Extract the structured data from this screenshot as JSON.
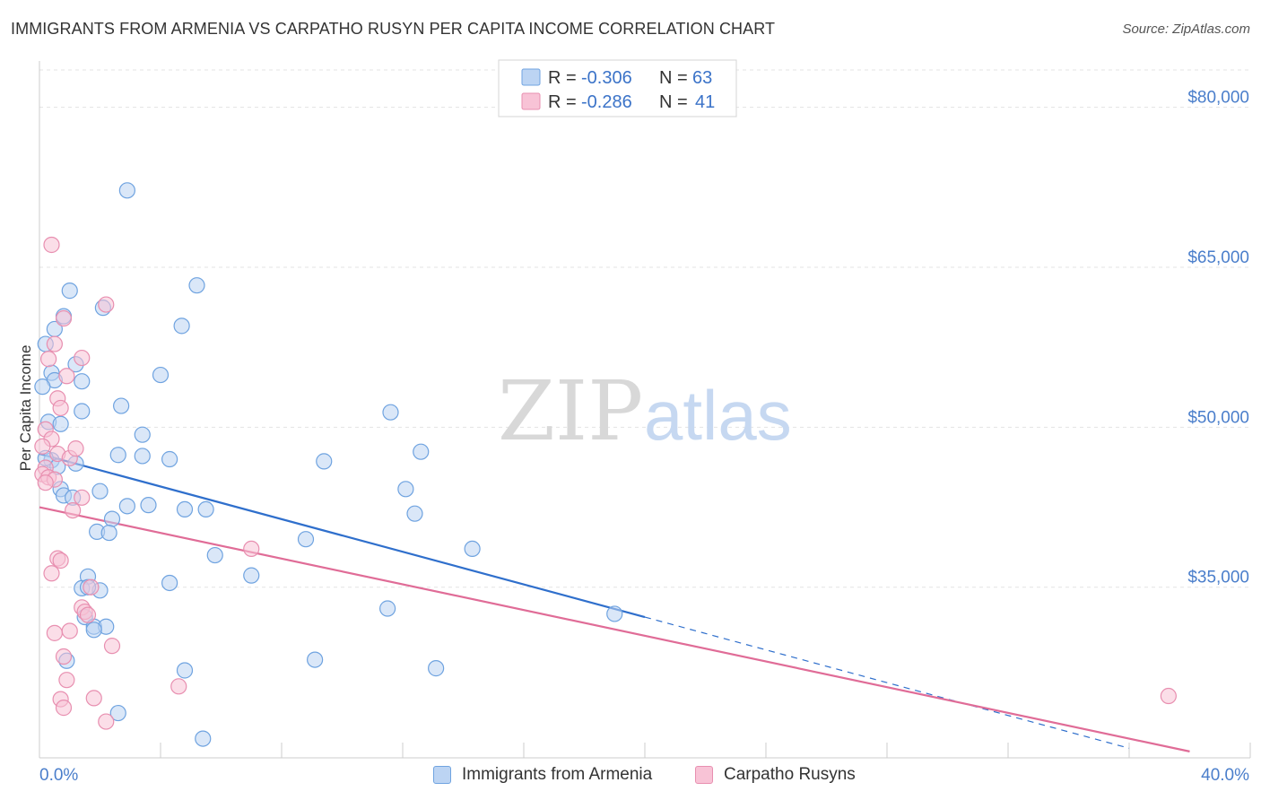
{
  "title": "IMMIGRANTS FROM ARMENIA VS CARPATHO RUSYN PER CAPITA INCOME CORRELATION CHART",
  "source": "Source: ZipAtlas.com",
  "watermark": {
    "zip": "ZIP",
    "atlas": "atlas"
  },
  "colors": {
    "blue": "#6fa3e0",
    "blue_fill": "#bcd4f3",
    "blue_line": "#2f6fcc",
    "pink": "#e88fb0",
    "pink_fill": "#f8c3d6",
    "pink_line": "#e06c97",
    "axis_label": "#4a7ecb"
  },
  "legend_top": [
    {
      "r_label": "R =",
      "r_value": "-0.306",
      "n_label": "N =",
      "n_value": "63"
    },
    {
      "r_label": "R =",
      "r_value": "-0.286",
      "n_label": "N =",
      "n_value": "41"
    }
  ],
  "chart_data": {
    "type": "scatter",
    "title": "IMMIGRANTS FROM ARMENIA VS CARPATHO RUSYN PER CAPITA INCOME CORRELATION CHART",
    "xlabel": "",
    "ylabel": "Per Capita Income",
    "xlim": [
      0,
      40
    ],
    "ylim": [
      19000,
      84000
    ],
    "x_tick_labels": [
      "0.0%",
      "40.0%"
    ],
    "y_ticks": [
      35000,
      50000,
      65000,
      80000
    ],
    "y_tick_labels": [
      "$35,000",
      "$50,000",
      "$65,000",
      "$80,000"
    ],
    "grid": true,
    "legend_position": "top-center",
    "series": [
      {
        "name": "Immigrants from Armenia",
        "color": "blue",
        "trend": {
          "x": [
            0,
            20
          ],
          "y": [
            47500,
            32200
          ],
          "dashed_to": {
            "x": [
              20,
              36
            ],
            "y": [
              32200,
              19900
            ]
          }
        },
        "points": [
          {
            "x": 2.9,
            "y": 72200
          },
          {
            "x": 5.2,
            "y": 63300
          },
          {
            "x": 1.0,
            "y": 62800
          },
          {
            "x": 2.1,
            "y": 61200
          },
          {
            "x": 0.8,
            "y": 60400
          },
          {
            "x": 4.7,
            "y": 59500
          },
          {
            "x": 0.5,
            "y": 59200
          },
          {
            "x": 0.2,
            "y": 57800
          },
          {
            "x": 1.2,
            "y": 55900
          },
          {
            "x": 0.4,
            "y": 55100
          },
          {
            "x": 4.0,
            "y": 54900
          },
          {
            "x": 0.5,
            "y": 54400
          },
          {
            "x": 1.4,
            "y": 54300
          },
          {
            "x": 0.1,
            "y": 53800
          },
          {
            "x": 2.7,
            "y": 52000
          },
          {
            "x": 1.4,
            "y": 51500
          },
          {
            "x": 11.6,
            "y": 51400
          },
          {
            "x": 0.3,
            "y": 50500
          },
          {
            "x": 0.7,
            "y": 50300
          },
          {
            "x": 3.4,
            "y": 49300
          },
          {
            "x": 12.6,
            "y": 47700
          },
          {
            "x": 2.6,
            "y": 47400
          },
          {
            "x": 3.4,
            "y": 47300
          },
          {
            "x": 4.3,
            "y": 47000
          },
          {
            "x": 9.4,
            "y": 46800
          },
          {
            "x": 0.4,
            "y": 46900
          },
          {
            "x": 0.2,
            "y": 47100
          },
          {
            "x": 1.2,
            "y": 46600
          },
          {
            "x": 0.6,
            "y": 46300
          },
          {
            "x": 12.1,
            "y": 44200
          },
          {
            "x": 0.7,
            "y": 44200
          },
          {
            "x": 2.0,
            "y": 44000
          },
          {
            "x": 0.8,
            "y": 43600
          },
          {
            "x": 1.1,
            "y": 43400
          },
          {
            "x": 3.6,
            "y": 42700
          },
          {
            "x": 2.9,
            "y": 42600
          },
          {
            "x": 4.8,
            "y": 42300
          },
          {
            "x": 5.5,
            "y": 42300
          },
          {
            "x": 12.4,
            "y": 41900
          },
          {
            "x": 2.4,
            "y": 41400
          },
          {
            "x": 1.9,
            "y": 40200
          },
          {
            "x": 2.3,
            "y": 40100
          },
          {
            "x": 8.8,
            "y": 39500
          },
          {
            "x": 14.3,
            "y": 38600
          },
          {
            "x": 5.8,
            "y": 38000
          },
          {
            "x": 1.6,
            "y": 36000
          },
          {
            "x": 7.0,
            "y": 36100
          },
          {
            "x": 4.3,
            "y": 35400
          },
          {
            "x": 1.4,
            "y": 34900
          },
          {
            "x": 2.0,
            "y": 34700
          },
          {
            "x": 11.5,
            "y": 33000
          },
          {
            "x": 19.0,
            "y": 32500
          },
          {
            "x": 1.5,
            "y": 32200
          },
          {
            "x": 1.8,
            "y": 31300
          },
          {
            "x": 2.2,
            "y": 31300
          },
          {
            "x": 1.8,
            "y": 31000
          },
          {
            "x": 0.9,
            "y": 28100
          },
          {
            "x": 9.1,
            "y": 28200
          },
          {
            "x": 4.8,
            "y": 27200
          },
          {
            "x": 13.1,
            "y": 27400
          },
          {
            "x": 2.6,
            "y": 23200
          },
          {
            "x": 5.4,
            "y": 20800
          },
          {
            "x": 1.6,
            "y": 35000
          }
        ]
      },
      {
        "name": "Carpatho Rusyns",
        "color": "pink",
        "trend": {
          "x": [
            0,
            38
          ],
          "y": [
            42500,
            19600
          ]
        },
        "points": [
          {
            "x": 0.4,
            "y": 67100
          },
          {
            "x": 2.2,
            "y": 61500
          },
          {
            "x": 0.8,
            "y": 60200
          },
          {
            "x": 0.5,
            "y": 57800
          },
          {
            "x": 1.4,
            "y": 56500
          },
          {
            "x": 0.3,
            "y": 56400
          },
          {
            "x": 0.9,
            "y": 54800
          },
          {
            "x": 0.6,
            "y": 52700
          },
          {
            "x": 0.7,
            "y": 51800
          },
          {
            "x": 0.2,
            "y": 49800
          },
          {
            "x": 0.4,
            "y": 48900
          },
          {
            "x": 0.1,
            "y": 48200
          },
          {
            "x": 0.6,
            "y": 47500
          },
          {
            "x": 1.0,
            "y": 47100
          },
          {
            "x": 0.2,
            "y": 46200
          },
          {
            "x": 0.1,
            "y": 45600
          },
          {
            "x": 0.3,
            "y": 45300
          },
          {
            "x": 0.5,
            "y": 45100
          },
          {
            "x": 0.2,
            "y": 44800
          },
          {
            "x": 1.4,
            "y": 43400
          },
          {
            "x": 1.1,
            "y": 42200
          },
          {
            "x": 7.0,
            "y": 38600
          },
          {
            "x": 0.6,
            "y": 37700
          },
          {
            "x": 0.7,
            "y": 37500
          },
          {
            "x": 0.4,
            "y": 36300
          },
          {
            "x": 1.7,
            "y": 35000
          },
          {
            "x": 1.4,
            "y": 33100
          },
          {
            "x": 1.5,
            "y": 32700
          },
          {
            "x": 1.6,
            "y": 32400
          },
          {
            "x": 0.5,
            "y": 30700
          },
          {
            "x": 1.0,
            "y": 30900
          },
          {
            "x": 2.4,
            "y": 29500
          },
          {
            "x": 0.8,
            "y": 28500
          },
          {
            "x": 0.9,
            "y": 26300
          },
          {
            "x": 4.6,
            "y": 25700
          },
          {
            "x": 0.7,
            "y": 24500
          },
          {
            "x": 1.8,
            "y": 24600
          },
          {
            "x": 0.8,
            "y": 23700
          },
          {
            "x": 2.2,
            "y": 22400
          },
          {
            "x": 37.3,
            "y": 24800
          },
          {
            "x": 1.2,
            "y": 48000
          }
        ]
      }
    ]
  },
  "legend_bottom": [
    {
      "label": "Immigrants from Armenia",
      "color": "blue"
    },
    {
      "label": "Carpatho Rusyns",
      "color": "pink"
    }
  ]
}
